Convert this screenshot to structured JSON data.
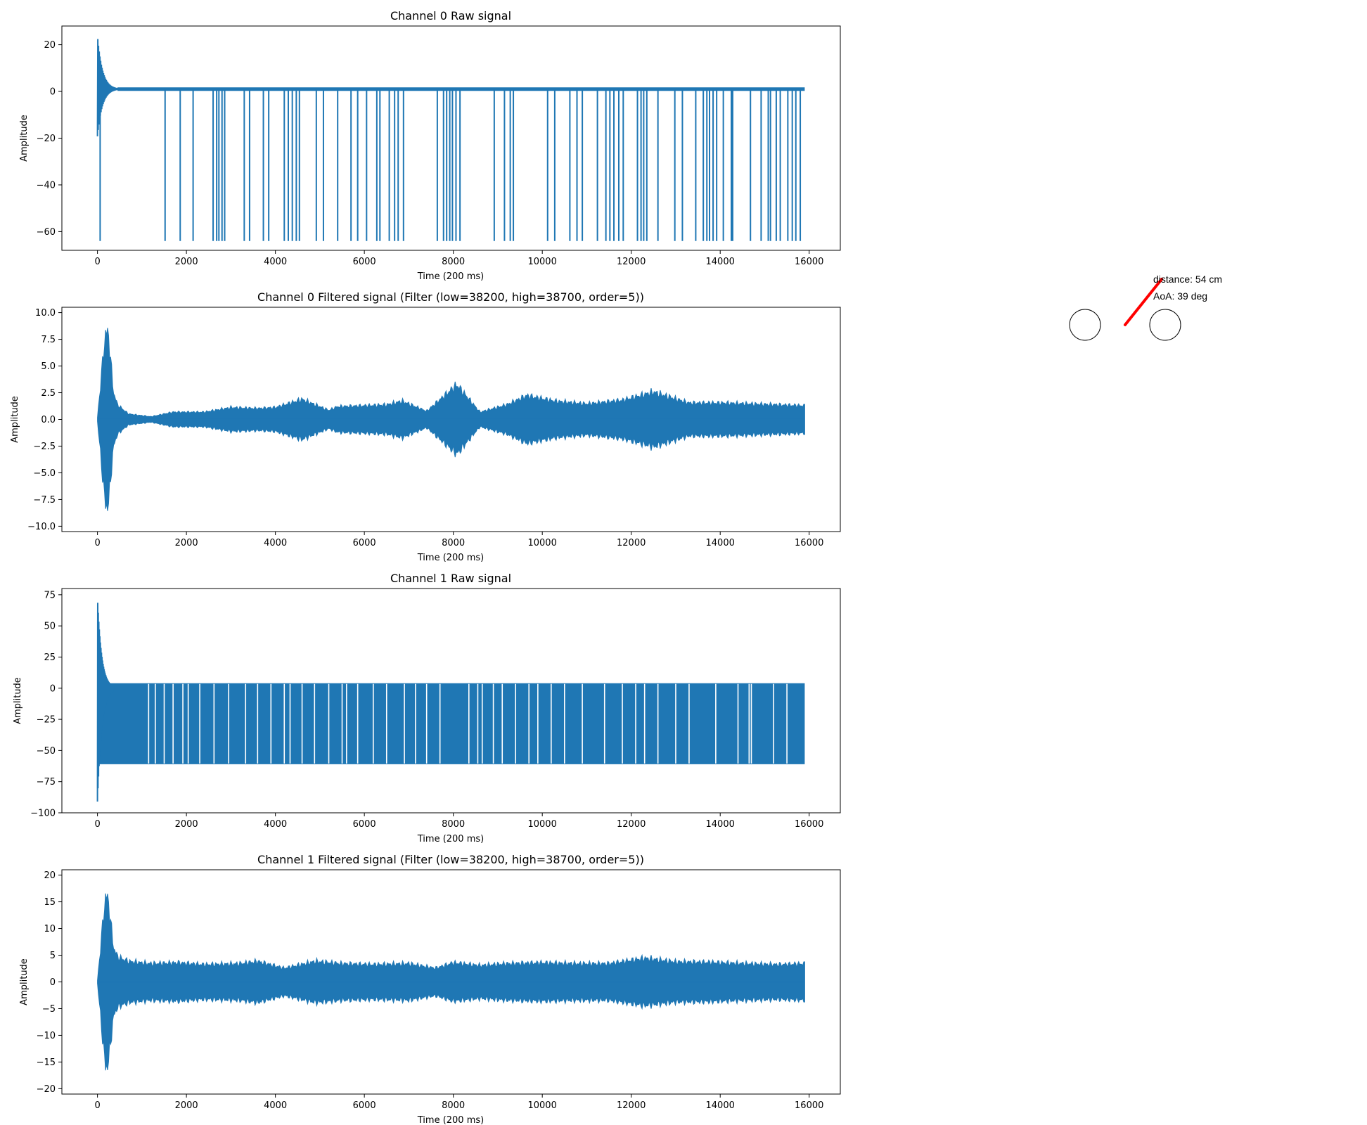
{
  "chart_data": [
    {
      "type": "line",
      "title": "Channel 0 Raw signal",
      "xlabel": "Time (200 ms)",
      "ylabel": "Amplitude",
      "xlim": [
        -800,
        16700
      ],
      "ylim": [
        -68,
        28
      ],
      "xticks": [
        0,
        2000,
        4000,
        6000,
        8000,
        10000,
        12000,
        14000,
        16000
      ],
      "yticks": [
        20,
        0,
        -20,
        -40,
        -60
      ],
      "ytick_labels": [
        "20",
        "0",
        "−20",
        "−40",
        "−60"
      ],
      "signal": "raw_spikes",
      "baseline": 1,
      "burst_amplitude": 24,
      "spike_value": -64,
      "x_end": 15900,
      "spike_x": [
        60,
        1520,
        1860,
        2150,
        2600,
        2680,
        2730,
        2800,
        2860,
        3300,
        3420,
        3730,
        3850,
        4200,
        4290,
        4380,
        4470,
        4540,
        4920,
        5080,
        5400,
        5700,
        5850,
        6050,
        6280,
        6350,
        6560,
        6680,
        6760,
        6880,
        7640,
        7780,
        7850,
        7920,
        7980,
        8060,
        8150,
        8920,
        9150,
        9280,
        9350,
        10120,
        10280,
        10620,
        10780,
        10900,
        11240,
        11430,
        11520,
        11610,
        11720,
        11820,
        12140,
        12220,
        12280,
        12350,
        12600,
        12980,
        13150,
        13450,
        13620,
        13700,
        13760,
        13840,
        13920,
        14070,
        14250,
        14280,
        14680,
        14920,
        15080,
        15130,
        15260,
        15350,
        15520,
        15620,
        15700,
        15800
      ]
    },
    {
      "type": "line",
      "title": "Channel 0 Filtered signal (Filter (low=38200, high=38700, order=5))",
      "xlabel": "Time (200 ms)",
      "ylabel": "Amplitude",
      "xlim": [
        -800,
        16700
      ],
      "ylim": [
        -10.5,
        10.5
      ],
      "xticks": [
        0,
        2000,
        4000,
        6000,
        8000,
        10000,
        12000,
        14000,
        16000
      ],
      "yticks": [
        10.0,
        7.5,
        5.0,
        2.5,
        0.0,
        -2.5,
        -5.0,
        -7.5,
        -10.0
      ],
      "ytick_labels": [
        "10.0",
        "7.5",
        "5.0",
        "2.5",
        "0.0",
        "−2.5",
        "−5.0",
        "−7.5",
        "−10.0"
      ],
      "signal": "filtered",
      "x_end": 15900,
      "peak_amplitude": 9.6,
      "peak_x": 220,
      "envelope_points": [
        [
          0,
          0.2
        ],
        [
          180,
          9.6
        ],
        [
          260,
          9.0
        ],
        [
          350,
          3.2
        ],
        [
          450,
          1.6
        ],
        [
          700,
          0.6
        ],
        [
          1200,
          0.3
        ],
        [
          1700,
          0.8
        ],
        [
          2400,
          0.8
        ],
        [
          3000,
          1.3
        ],
        [
          3600,
          1.2
        ],
        [
          4000,
          1.3
        ],
        [
          4600,
          2.2
        ],
        [
          5200,
          1.0
        ],
        [
          5400,
          1.4
        ],
        [
          6000,
          1.5
        ],
        [
          6500,
          1.6
        ],
        [
          6850,
          2.0
        ],
        [
          7400,
          0.9
        ],
        [
          8080,
          3.8
        ],
        [
          8600,
          0.8
        ],
        [
          9200,
          1.6
        ],
        [
          9650,
          2.6
        ],
        [
          10300,
          2.0
        ],
        [
          11000,
          1.7
        ],
        [
          11800,
          2.1
        ],
        [
          12500,
          3.0
        ],
        [
          13300,
          1.8
        ],
        [
          14100,
          1.8
        ],
        [
          14700,
          1.7
        ],
        [
          15300,
          1.6
        ],
        [
          15900,
          1.5
        ]
      ]
    },
    {
      "type": "line",
      "title": "Channel 1 Raw signal",
      "xlabel": "Time (200 ms)",
      "ylabel": "Amplitude",
      "xlim": [
        -800,
        16700
      ],
      "ylim": [
        -100,
        80
      ],
      "xticks": [
        0,
        2000,
        4000,
        6000,
        8000,
        10000,
        12000,
        14000,
        16000
      ],
      "yticks": [
        75,
        50,
        25,
        0,
        -25,
        -50,
        -75,
        -100
      ],
      "ytick_labels": [
        "75",
        "50",
        "25",
        "0",
        "−25",
        "−50",
        "−75",
        "−100"
      ],
      "signal": "raw_band",
      "band_top": 4,
      "band_bottom": -61,
      "burst_max": 73,
      "burst_min": -91,
      "x_end": 15900,
      "gap_x": [
        1150,
        1300,
        1500,
        1700,
        1920,
        2040,
        2300,
        2620,
        2950,
        3330,
        3600,
        3900,
        4200,
        4330,
        4600,
        4880,
        5200,
        5500,
        5600,
        5850,
        6200,
        6500,
        6900,
        7150,
        7400,
        7700,
        8350,
        8550,
        8650,
        8900,
        9100,
        9400,
        9700,
        9900,
        10200,
        10500,
        10900,
        11400,
        11800,
        12100,
        12300,
        12600,
        13000,
        13300,
        13900,
        14400,
        14650,
        14700,
        15200,
        15500
      ]
    },
    {
      "type": "line",
      "title": "Channel 1 Filtered signal (Filter (low=38200, high=38700, order=5))",
      "xlabel": "Time (200 ms)",
      "ylabel": "Amplitude",
      "xlim": [
        -800,
        16700
      ],
      "ylim": [
        -21,
        21
      ],
      "xticks": [
        0,
        2000,
        4000,
        6000,
        8000,
        10000,
        12000,
        14000,
        16000
      ],
      "yticks": [
        20,
        15,
        10,
        5,
        0,
        -5,
        -10,
        -15,
        -20
      ],
      "ytick_labels": [
        "20",
        "15",
        "10",
        "5",
        "0",
        "−5",
        "−10",
        "−15",
        "−20"
      ],
      "signal": "filtered",
      "x_end": 15900,
      "peak_amplitude": 19,
      "peak_x": 220,
      "envelope_points": [
        [
          0,
          0.3
        ],
        [
          180,
          19
        ],
        [
          260,
          17
        ],
        [
          350,
          8
        ],
        [
          450,
          5.5
        ],
        [
          700,
          4.5
        ],
        [
          1200,
          4.0
        ],
        [
          1800,
          4.2
        ],
        [
          2400,
          3.8
        ],
        [
          3200,
          4.0
        ],
        [
          3600,
          4.5
        ],
        [
          4200,
          3.0
        ],
        [
          4900,
          4.5
        ],
        [
          5500,
          4.0
        ],
        [
          6200,
          3.8
        ],
        [
          7000,
          4.0
        ],
        [
          7600,
          3.0
        ],
        [
          8000,
          4.2
        ],
        [
          8600,
          3.6
        ],
        [
          9200,
          4.0
        ],
        [
          10000,
          4.2
        ],
        [
          10800,
          4.0
        ],
        [
          11500,
          4.0
        ],
        [
          12300,
          5.2
        ],
        [
          13000,
          4.4
        ],
        [
          13800,
          4.3
        ],
        [
          14600,
          4.0
        ],
        [
          15300,
          3.8
        ],
        [
          15900,
          4.0
        ]
      ]
    }
  ],
  "inset": {
    "distance_label": "distance: 54 cm",
    "aoa_label": "AoA: 39 deg",
    "arrow_color": "#ff0000",
    "circle_count": 2
  },
  "colors": {
    "series": "#1f77b4",
    "axes": "#000000",
    "background": "#ffffff"
  }
}
